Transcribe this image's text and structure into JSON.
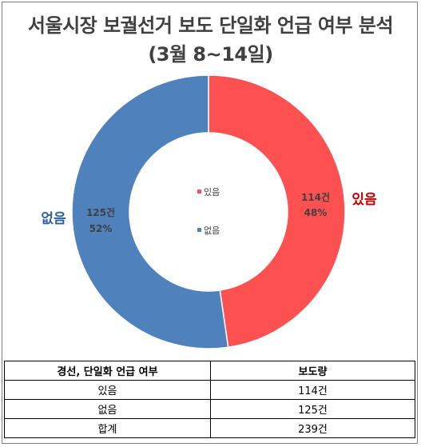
{
  "title_line1": "서울시장 보궐선거 보도 단일화 언급 여부 분석",
  "title_line2": "(3월 8~14일)",
  "chart_data": {
    "type": "pie",
    "donut": true,
    "categories": [
      "있음",
      "없음"
    ],
    "values": [
      114,
      125
    ],
    "colors": [
      "#fd5050",
      "#4f81bd"
    ],
    "data_labels": [
      {
        "count": "114건",
        "percent": "48%"
      },
      {
        "count": "125건",
        "percent": "52%"
      }
    ],
    "outside_labels": [
      "있음",
      "없음"
    ],
    "outside_label_colors": [
      "#c00000",
      "#2e5fa3"
    ],
    "legend": {
      "placement": "center",
      "entries": [
        "있음",
        "없음"
      ]
    }
  },
  "table": {
    "headers": [
      "경선, 단일화 언급 여부",
      "보도량"
    ],
    "rows": [
      [
        "있음",
        "114건"
      ],
      [
        "없음",
        "125건"
      ],
      [
        "합계",
        "239건"
      ]
    ]
  }
}
